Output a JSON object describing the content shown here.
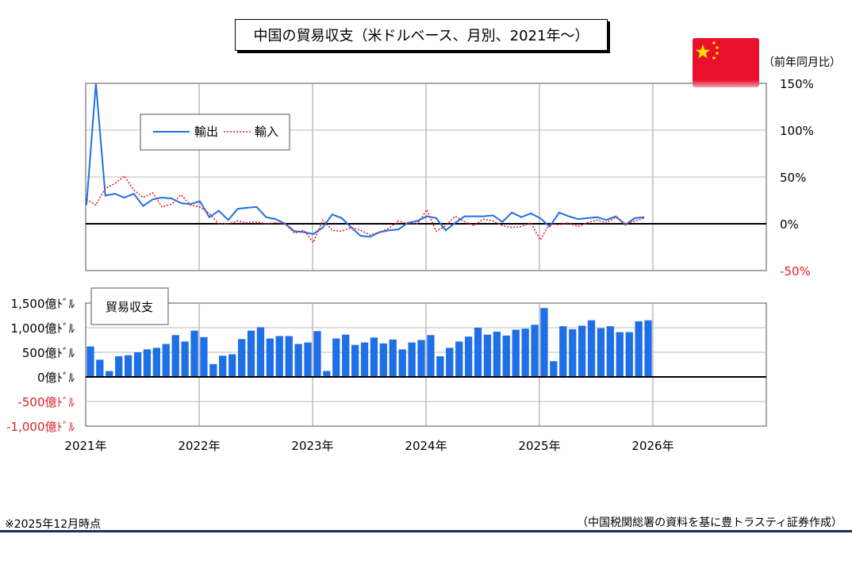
{
  "title": "中国の貿易収支（米ドルベース、月別、2021年～）",
  "unit_label": "（前年同月比）",
  "note": "※2025年12月時点",
  "source": "（中国税関総署の資料を基に豊トラスティ証券作成）",
  "flag": {
    "red": "#e8102a",
    "yellow": "#ffde00"
  },
  "colors": {
    "export_line": "#1f6fe6",
    "import_line": "#e0202a",
    "bar": "#1f6fe6",
    "negative_label": "#e0202a"
  },
  "chart_data": [
    {
      "type": "line",
      "legend": [
        "輸出",
        "輸入"
      ],
      "legend_placement": "top-left",
      "ylim": [
        -50,
        150
      ],
      "yticks": [
        "150%",
        "100%",
        "50%",
        "0%",
        "-50%"
      ],
      "grid": true,
      "x_start": "2021-01",
      "x_range": [
        "2021-01",
        "2027-01"
      ],
      "xticks": [
        "2021年",
        "2022年",
        "2023年",
        "2024年",
        "2025年",
        "2026年"
      ],
      "series": [
        {
          "name": "輸出",
          "style": "solid",
          "values": [
            20,
            150,
            30,
            32,
            28,
            32,
            19,
            26,
            28,
            27,
            22,
            21,
            24,
            7,
            14,
            4,
            16,
            17,
            18,
            7,
            5,
            0,
            -8,
            -9,
            -11,
            -4,
            10,
            6,
            -4,
            -13,
            -14,
            -9,
            -7,
            -6,
            1,
            3,
            8,
            6,
            -7,
            1,
            8,
            8,
            8,
            9,
            2,
            12,
            7,
            11,
            6,
            -3,
            12,
            8,
            5,
            6,
            7,
            4,
            8,
            -1,
            6,
            7
          ]
        },
        {
          "name": "輸入",
          "style": "dotted",
          "values": [
            26,
            20,
            38,
            43,
            51,
            36,
            28,
            33,
            18,
            21,
            31,
            20,
            18,
            11,
            0,
            0,
            3,
            1,
            2,
            0,
            1,
            0,
            -10,
            -7,
            -20,
            4,
            -7,
            -8,
            -4,
            -7,
            -12,
            -9,
            -5,
            3,
            0,
            0,
            15,
            -8,
            -2,
            8,
            2,
            -2,
            5,
            3,
            -2,
            -4,
            -3,
            1,
            -17,
            0,
            -1,
            1,
            -3,
            1,
            4,
            1,
            7,
            0,
            3,
            6
          ]
        }
      ]
    },
    {
      "type": "bar",
      "legend": [
        "貿易収支"
      ],
      "legend_placement": "top-left",
      "ylim": [
        -1000,
        1500
      ],
      "yticks": [
        "1,500億ﾄﾞﾙ",
        "1,000億ﾄﾞﾙ",
        "500億ﾄﾞﾙ",
        "0億ﾄﾞﾙ",
        "-500億ﾄﾞﾙ",
        "-1,000億ﾄﾞﾙ"
      ],
      "grid": true,
      "x_start": "2021-01",
      "x_range": [
        "2021-01",
        "2027-01"
      ],
      "xticks": [
        "2021年",
        "2022年",
        "2023年",
        "2024年",
        "2025年",
        "2026年"
      ],
      "series": [
        {
          "name": "貿易収支",
          "values": [
            620,
            350,
            120,
            420,
            440,
            500,
            560,
            590,
            670,
            850,
            720,
            940,
            810,
            260,
            430,
            460,
            770,
            940,
            1010,
            780,
            830,
            830,
            670,
            700,
            930,
            120,
            780,
            860,
            650,
            700,
            800,
            680,
            760,
            560,
            700,
            750,
            850,
            420,
            590,
            720,
            820,
            1000,
            860,
            920,
            840,
            960,
            980,
            1060,
            1400,
            320,
            1030,
            970,
            1040,
            1150,
            990,
            1030,
            910,
            910,
            1130,
            1150
          ]
        }
      ]
    }
  ]
}
